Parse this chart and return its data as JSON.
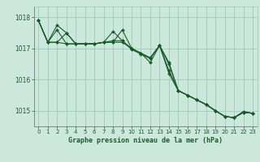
{
  "background_color": "#cce8dd",
  "plot_bg_color": "#cce8dd",
  "grid_color": "#99ccbb",
  "line_color": "#1a5c28",
  "marker_color": "#1a5c28",
  "xlabel": "Graphe pression niveau de la mer (hPa)",
  "xlim": [
    -0.5,
    23.5
  ],
  "ylim": [
    1014.5,
    1018.35
  ],
  "yticks": [
    1015,
    1016,
    1017,
    1018
  ],
  "xticks": [
    0,
    1,
    2,
    3,
    4,
    5,
    6,
    7,
    8,
    9,
    10,
    11,
    12,
    13,
    14,
    15,
    16,
    17,
    18,
    19,
    20,
    21,
    22,
    23
  ],
  "series": [
    [
      1017.9,
      1017.2,
      1017.75,
      1017.5,
      1017.15,
      1017.15,
      1017.15,
      1017.2,
      1017.2,
      1017.2,
      1017.0,
      1016.85,
      1016.7,
      1017.1,
      1016.5,
      1015.65,
      1015.5,
      1015.35,
      1015.2,
      1015.0,
      1014.82,
      1014.78,
      1014.95,
      1014.92
    ],
    [
      1017.9,
      1017.2,
      1017.6,
      1017.15,
      1017.15,
      1017.15,
      1017.15,
      1017.2,
      1017.2,
      1017.6,
      1017.0,
      1016.85,
      1016.7,
      1017.1,
      1016.3,
      1015.65,
      1015.5,
      1015.35,
      1015.2,
      1015.0,
      1014.82,
      1014.78,
      1014.95,
      1014.92
    ],
    [
      1017.9,
      1017.2,
      1017.2,
      1017.5,
      1017.15,
      1017.15,
      1017.15,
      1017.2,
      1017.55,
      1017.25,
      1017.0,
      1016.85,
      1016.55,
      1017.1,
      1016.2,
      1015.65,
      1015.5,
      1015.35,
      1015.2,
      1015.0,
      1014.82,
      1014.78,
      1014.98,
      1014.92
    ],
    [
      1017.9,
      1017.2,
      1017.2,
      1017.15,
      1017.15,
      1017.15,
      1017.15,
      1017.2,
      1017.25,
      1017.25,
      1016.97,
      1016.82,
      1016.68,
      1017.1,
      1016.55,
      1015.65,
      1015.5,
      1015.35,
      1015.2,
      1015.0,
      1014.82,
      1014.78,
      1014.95,
      1014.92
    ]
  ]
}
